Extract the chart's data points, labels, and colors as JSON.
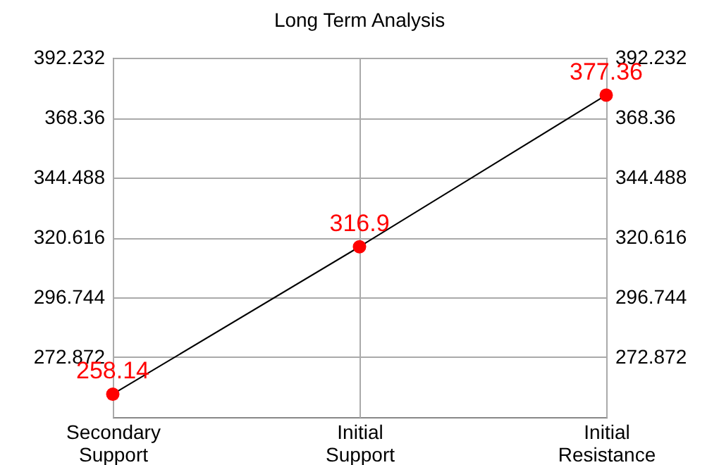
{
  "chart_data": {
    "type": "line",
    "title": "Long Term Analysis",
    "categories": [
      "Secondary Support",
      "Initial Support",
      "Initial Resistance"
    ],
    "series": [
      {
        "color": "#000000",
        "colors": [
          "#ff0000",
          "#ff0000",
          "#ff0000"
        ],
        "values": [
          258.14,
          316.9,
          377.36
        ]
      }
    ],
    "ylim": [
      249,
      392.232
    ],
    "yticks": [
      272.872,
      296.744,
      320.616,
      344.488,
      368.36,
      392.232
    ],
    "y2lim": [
      249,
      392.232
    ],
    "y2ticks": [
      272.872,
      296.744,
      320.616,
      344.488,
      368.36,
      392.232
    ],
    "grid": true,
    "marker": "circle",
    "data_labels": true
  }
}
